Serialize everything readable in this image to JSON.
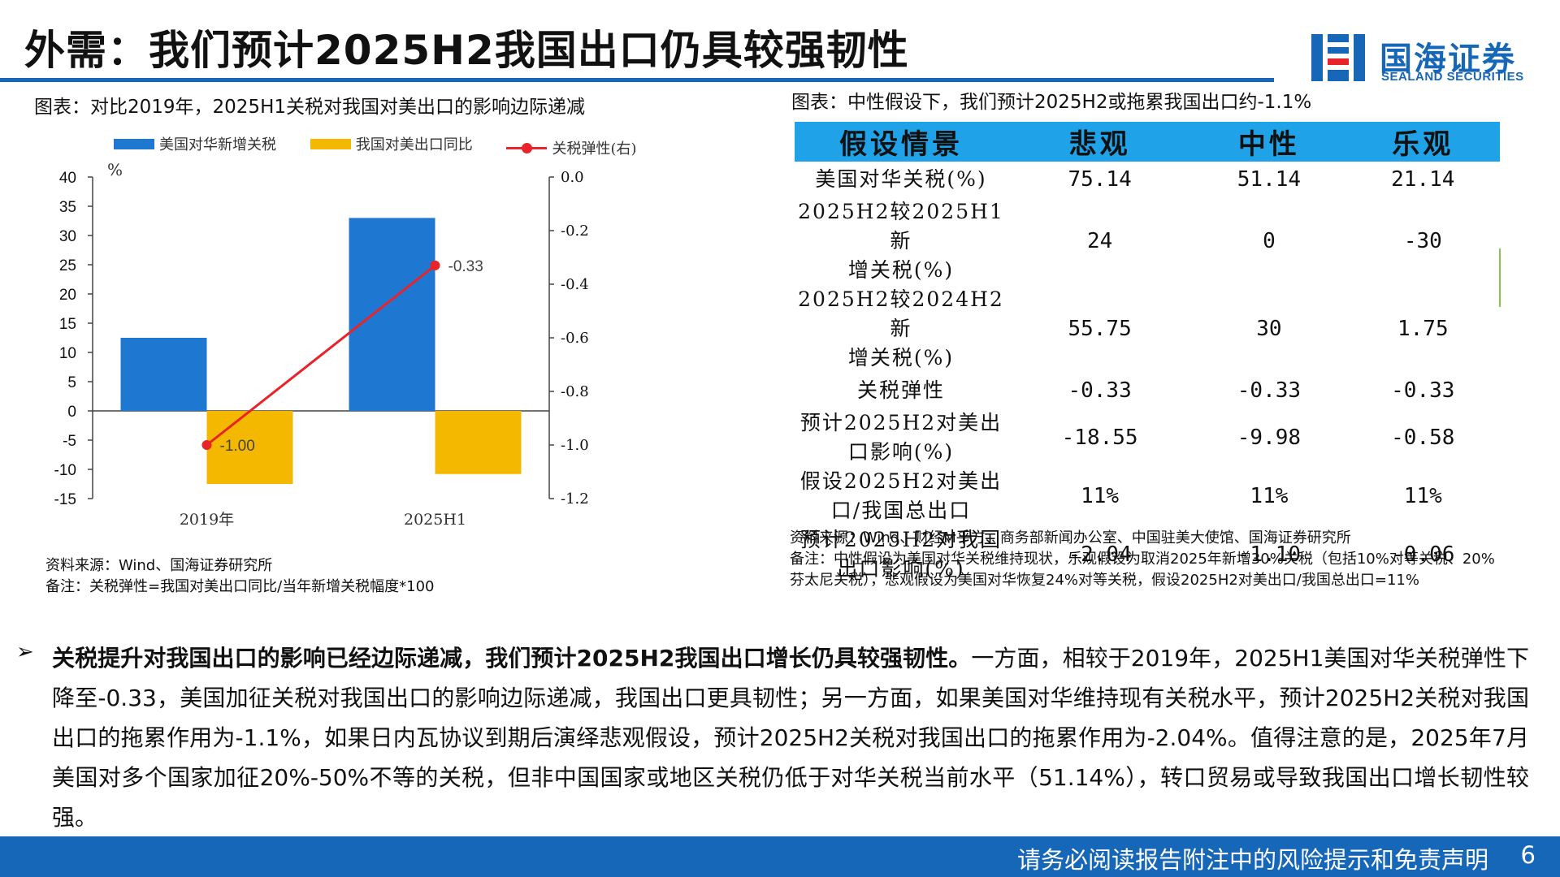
{
  "header": {
    "title": "外需：我们预计2025H2我国出口仍具较强韧性",
    "logo_cn": "国海证券",
    "logo_en": "SEALAND SECURITIES",
    "brand_color": "#1767b8"
  },
  "left_figure": {
    "caption": "图表：对比2019年，2025H1关税对我国对美出口的影响边际递减",
    "source": "资料来源：Wind、国海证券研究所",
    "note": "备注：关税弹性=我国对美出口同比/当年新增关税幅度*100"
  },
  "chart_data": {
    "type": "bar",
    "categories": [
      "2019年",
      "2025H1"
    ],
    "series": [
      {
        "name": "美国对华新增关税",
        "type": "bar",
        "axis": "left",
        "color": "#1e78d2",
        "values": [
          12.5,
          33
        ]
      },
      {
        "name": "我国对美出口同比",
        "type": "bar",
        "axis": "left",
        "color": "#f5b800",
        "values": [
          -12.5,
          -10.8
        ]
      },
      {
        "name": "关税弹性(右)",
        "type": "line",
        "axis": "right",
        "color": "#e8232a",
        "values": [
          -1.0,
          -0.33
        ],
        "labels": [
          "-1.00",
          "-0.33"
        ]
      }
    ],
    "ylabel": "%",
    "ylim": [
      -15,
      40
    ],
    "yticks": [
      "40",
      "35",
      "30",
      "25",
      "20",
      "15",
      "10",
      "5",
      "0",
      "-5",
      "-10",
      "-15"
    ],
    "y2lim": [
      -1.2,
      0.0
    ],
    "y2ticks": [
      "0.0",
      "-0.2",
      "-0.4",
      "-0.6",
      "-0.8",
      "-1.0",
      "-1.2"
    ],
    "legend_position": "top",
    "grid": false
  },
  "right_table": {
    "caption": "图表：中性假设下，我们预计2025H2或拖累我国出口约-1.1%",
    "header": [
      "假设情景",
      "悲观",
      "中性",
      "乐观"
    ],
    "header_color": "#1fa2e8",
    "rows": [
      {
        "label1": "美国对华关税(%)",
        "label2": "",
        "values": [
          "75.14",
          "51.14",
          "21.14"
        ]
      },
      {
        "label1": "2025H2较2025H1新",
        "label2": "增关税(%)",
        "values": [
          "24",
          "0",
          "-30"
        ]
      },
      {
        "label1": "2025H2较2024H2新",
        "label2": "增关税(%)",
        "values": [
          "55.75",
          "30",
          "1.75"
        ]
      },
      {
        "label1": "关税弹性",
        "label2": "",
        "values": [
          "-0.33",
          "-0.33",
          "-0.33"
        ]
      },
      {
        "label1": "预计2025H2对美出",
        "label2": "口影响(%)",
        "values": [
          "-18.55",
          "-9.98",
          "-0.58"
        ]
      },
      {
        "label1": "假设2025H2对美出",
        "label2": "口/我国总出口",
        "values": [
          "11%",
          "11%",
          "11%"
        ]
      },
      {
        "label1": "预计2025H2对我国",
        "label2": "出口影响(%)",
        "values": [
          "-2.04",
          "-1.10",
          "-0.06"
        ]
      }
    ],
    "source": "资料来源：Wind、财经M平方、商务部新闻办公室、中国驻美大使馆、国海证券研究所",
    "note": "备注：中性假设为美国对华关税维持现状，乐观假设为取消2025年新增30%关税（包括10%对等关税、20%芬太尼关税），悲观假设为美国对华恢复24%对等关税，假设2025H2对美出口/我国总出口=11%"
  },
  "body": {
    "bullet": "➢",
    "bold_lead": "关税提升对我国出口的影响已经边际递减，我们预计2025H2我国出口增长仍具较强韧性。",
    "text": "一方面，相较于2019年，2025H1美国对华关税弹性下降至-0.33，美国加征关税对我国出口的影响边际递减，我国出口更具韧性；另一方面，如果美国对华维持现有关税水平，预计2025H2关税对我国出口的拖累作用为-1.1%，如果日内瓦协议到期后演绎悲观假设，预计2025H2关税对我国出口的拖累作用为-2.04%。值得注意的是，2025年7月美国对多个国家加征20%-50%不等的关税，但非中国国家或地区关税仍低于对华关税当前水平（51.14%），转口贸易或导致我国出口增长韧性较强。"
  },
  "footer": {
    "disclaimer": "请务必阅读报告附注中的风险提示和免责声明",
    "page": "6"
  }
}
